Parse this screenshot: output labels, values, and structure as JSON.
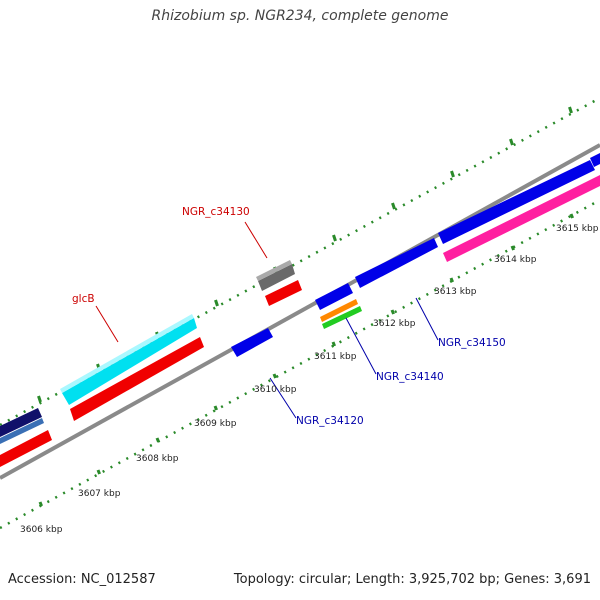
{
  "title": "Rhizobium sp. NGR234, complete genome",
  "footer": {
    "accession": "Accession: NC_012587",
    "stats": "Topology: circular; Length: 3,925,702 bp; Genes: 3,691"
  },
  "colors": {
    "backbone": "#8a8a8a",
    "ticks": "#2a8a2a",
    "label_red": "#cc0000",
    "label_blue": "#0000aa"
  },
  "ticks": [
    "3606 kbp",
    "3607 kbp",
    "3608 kbp",
    "3609 kbp",
    "3610 kbp",
    "3611 kbp",
    "3612 kbp",
    "3613 kbp",
    "3614 kbp",
    "3615 kbp"
  ],
  "genes": [
    {
      "name": "glcB",
      "color": "#cc0000"
    },
    {
      "name": "NGR_c34130",
      "color": "#cc0000"
    },
    {
      "name": "NGR_c34120",
      "color": "#0000aa"
    },
    {
      "name": "NGR_c34140",
      "color": "#0000aa"
    },
    {
      "name": "NGR_c34150",
      "color": "#0000aa"
    }
  ]
}
